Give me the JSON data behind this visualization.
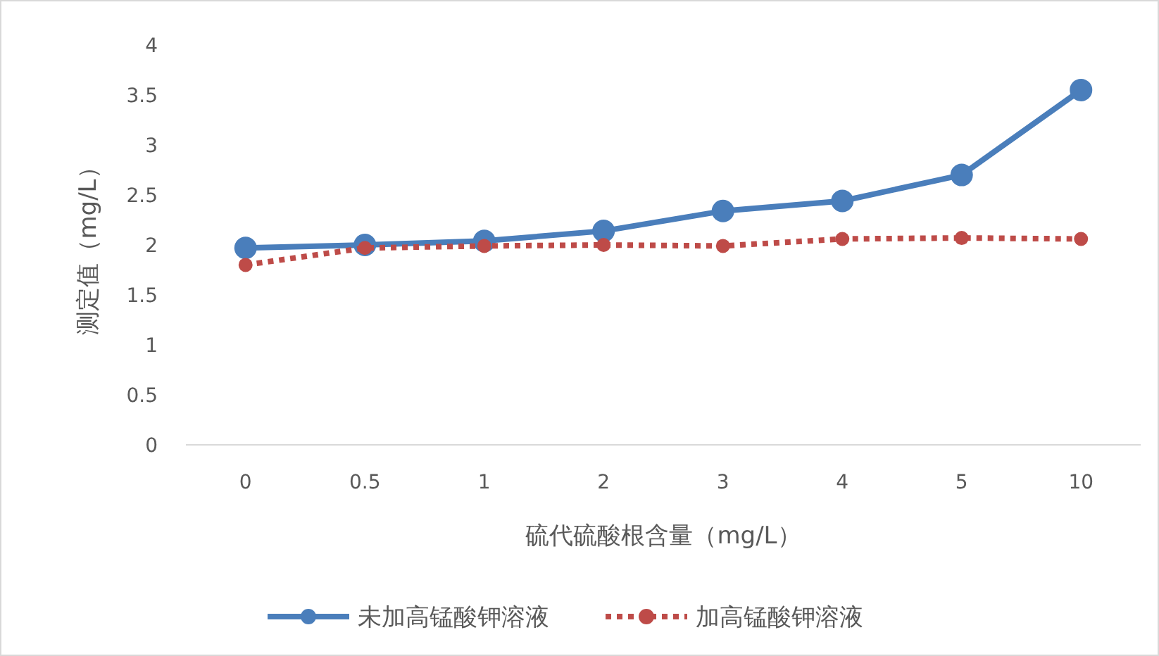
{
  "chart_data": {
    "type": "line",
    "xlabel": "硫代硫酸根含量（mg/L）",
    "ylabel": "测定值（mg/L）",
    "categories": [
      "0",
      "0.5",
      "1",
      "2",
      "3",
      "4",
      "5",
      "10"
    ],
    "series": [
      {
        "name": "未加高锰酸钾溶液",
        "color": "#4a7ebb",
        "values": [
          1.97,
          2.0,
          2.04,
          2.14,
          2.34,
          2.44,
          2.7,
          3.55
        ],
        "line_style": "solid"
      },
      {
        "name": "加高锰酸钾溶液",
        "color": "#be4b48",
        "values": [
          1.8,
          1.97,
          1.99,
          2.0,
          1.99,
          2.06,
          2.07,
          2.06
        ],
        "line_style": "dotted"
      }
    ],
    "ylim": [
      0,
      4
    ],
    "yticks": [
      0,
      0.5,
      1,
      1.5,
      2,
      2.5,
      3,
      3.5,
      4
    ],
    "legend": "bottom",
    "marker": "circle"
  }
}
